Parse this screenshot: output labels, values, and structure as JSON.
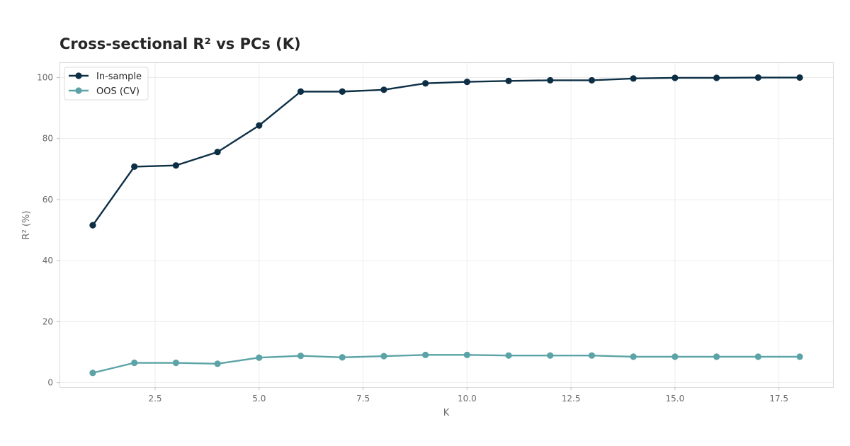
{
  "chart_data": {
    "type": "line",
    "title": "Cross-sectional R² vs PCs (K)",
    "xlabel": "K",
    "ylabel": "R² (%)",
    "xlim": [
      0.2,
      18.8
    ],
    "ylim": [
      -1.5,
      105
    ],
    "xticks": [
      2.5,
      5.0,
      7.5,
      10.0,
      12.5,
      15.0,
      17.5
    ],
    "xtick_labels": [
      "2.5",
      "5.0",
      "7.5",
      "10.0",
      "12.5",
      "15.0",
      "17.5"
    ],
    "yticks": [
      0,
      20,
      40,
      60,
      80,
      100
    ],
    "ytick_labels": [
      "0",
      "20",
      "40",
      "60",
      "80",
      "100"
    ],
    "grid": true,
    "legend_position": "top-left",
    "x": [
      1,
      2,
      3,
      4,
      5,
      6,
      7,
      8,
      9,
      10,
      11,
      12,
      13,
      14,
      15,
      16,
      17,
      18
    ],
    "series": [
      {
        "name": "In-sample",
        "color": "#0d2f45",
        "values": [
          51.6,
          70.8,
          71.2,
          75.6,
          84.3,
          95.4,
          95.4,
          96.0,
          98.1,
          98.6,
          98.9,
          99.1,
          99.1,
          99.7,
          99.9,
          99.9,
          100.0,
          100.0
        ]
      },
      {
        "name": "OOS (CV)",
        "color": "#5ba3a6",
        "values": [
          3.2,
          6.5,
          6.5,
          6.2,
          8.2,
          8.8,
          8.3,
          8.7,
          9.1,
          9.1,
          8.9,
          8.9,
          8.9,
          8.5,
          8.5,
          8.5,
          8.5,
          8.5
        ]
      }
    ]
  }
}
